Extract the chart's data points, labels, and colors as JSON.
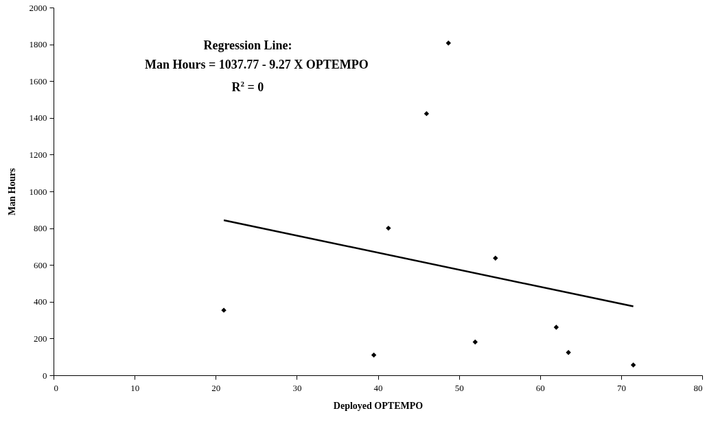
{
  "chart_data": {
    "type": "scatter",
    "xlabel": "Deployed OPTEMPO",
    "ylabel": "Man Hours",
    "xlim": [
      0,
      80
    ],
    "xticks": [
      0,
      10,
      20,
      30,
      40,
      50,
      60,
      70,
      80
    ],
    "ylim": [
      0,
      2000
    ],
    "yticks": [
      0,
      200,
      400,
      600,
      800,
      1000,
      1200,
      1400,
      1600,
      1800,
      2000
    ],
    "grid": false,
    "marker": "diamond",
    "series": [
      {
        "color": "#000000",
        "x": [
          21,
          39.5,
          41.3,
          46,
          48.7,
          52,
          54.5,
          62,
          63.5,
          71.5
        ],
        "values": [
          354,
          110,
          800,
          1423,
          1807,
          181,
          637,
          261,
          124,
          56
        ]
      },
      {
        "type": "line",
        "marker": "none",
        "color": "#000000",
        "x": [
          21,
          71.5
        ],
        "values": [
          843,
          375
        ]
      }
    ],
    "annotations": [
      "Regression Line:",
      "Man Hours = 1037.77 - 9.27 X OPTEMPO",
      "R$^{2}$ = 0"
    ]
  }
}
